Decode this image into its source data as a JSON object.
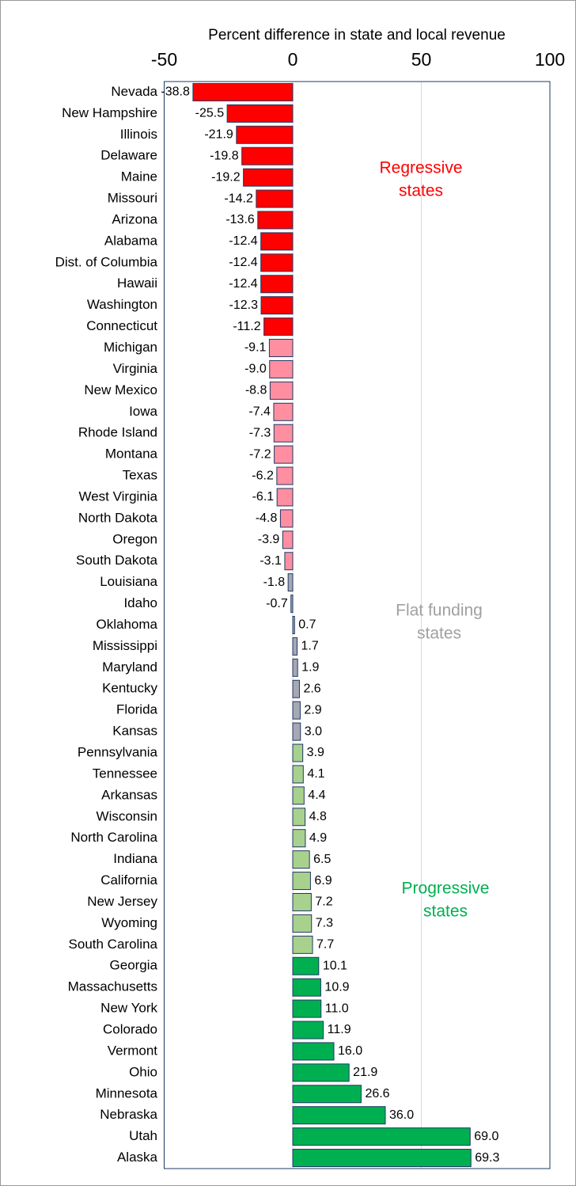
{
  "chart_data": {
    "type": "hbar",
    "title": "Percent difference in state and local revenue",
    "categories": [
      "Nevada",
      "New Hampshire",
      "Illinois",
      "Delaware",
      "Maine",
      "Missouri",
      "Arizona",
      "Alabama",
      "Dist. of Columbia",
      "Hawaii",
      "Washington",
      "Connecticut",
      "Michigan",
      "Virginia",
      "New Mexico",
      "Iowa",
      "Rhode Island",
      "Montana",
      "Texas",
      "West Virginia",
      "North Dakota",
      "Oregon",
      "South Dakota",
      "Louisiana",
      "Idaho",
      "Oklahoma",
      "Mississippi",
      "Maryland",
      "Kentucky",
      "Florida",
      "Kansas",
      "Pennsylvania",
      "Tennessee",
      "Arkansas",
      "Wisconsin",
      "North Carolina",
      "Indiana",
      "California",
      "New Jersey",
      "Wyoming",
      "South Carolina",
      "Georgia",
      "Massachusetts",
      "New York",
      "Colorado",
      "Vermont",
      "Ohio",
      "Minnesota",
      "Nebraska",
      "Utah",
      "Alaska"
    ],
    "values": [
      -38.8,
      -25.5,
      -21.9,
      -19.8,
      -19.2,
      -14.2,
      -13.6,
      -12.4,
      -12.4,
      -12.4,
      -12.3,
      -11.2,
      -9.1,
      -9.0,
      -8.8,
      -7.4,
      -7.3,
      -7.2,
      -6.2,
      -6.1,
      -4.8,
      -3.9,
      -3.1,
      -1.8,
      -0.7,
      0.7,
      1.7,
      1.9,
      2.6,
      2.9,
      3.0,
      3.9,
      4.1,
      4.4,
      4.8,
      4.9,
      6.5,
      6.9,
      7.2,
      7.3,
      7.7,
      10.1,
      10.9,
      11.0,
      11.9,
      16.0,
      21.9,
      26.6,
      36.0,
      69.0,
      69.3
    ],
    "value_labels": [
      "-38.8",
      "-25.5",
      "-21.9",
      "-19.8",
      "-19.2",
      "-14.2",
      "-13.6",
      "-12.4",
      "-12.4",
      "-12.4",
      "-12.3",
      "-11.2",
      "-9.1",
      "-9.0",
      "-8.8",
      "-7.4",
      "-7.3",
      "-7.2",
      "-6.2",
      "-6.1",
      "-4.8",
      "-3.9",
      "-3.1",
      "-1.8",
      "-0.7",
      "0.7",
      "1.7",
      "1.9",
      "2.6",
      "2.9",
      "3.0",
      "3.9",
      "4.1",
      "4.4",
      "4.8",
      "4.9",
      "6.5",
      "6.9",
      "7.2",
      "7.3",
      "7.7",
      "10.1",
      "10.9",
      "11.0",
      "11.9",
      "16.0",
      "21.9",
      "26.6",
      "36.0",
      "69.0",
      "69.3"
    ],
    "colors": [
      "#ff0000",
      "#ff0000",
      "#ff0000",
      "#ff0000",
      "#ff0000",
      "#ff0000",
      "#ff0000",
      "#ff0000",
      "#ff0000",
      "#ff0000",
      "#ff0000",
      "#ff0000",
      "#ff8fa0",
      "#ff8fa0",
      "#ff8fa0",
      "#ff8fa0",
      "#ff8fa0",
      "#ff8fa0",
      "#ff8fa0",
      "#ff8fa0",
      "#ff8fa0",
      "#ff8fa0",
      "#ff8fa0",
      "#a6a8b4",
      "#a6a8b4",
      "#a6a8b4",
      "#a6a8b4",
      "#a6a8b4",
      "#a6a8b4",
      "#a6a8b4",
      "#a6a8b4",
      "#a9d18e",
      "#a9d18e",
      "#a9d18e",
      "#a9d18e",
      "#a9d18e",
      "#a9d18e",
      "#a9d18e",
      "#a9d18e",
      "#a9d18e",
      "#a9d18e",
      "#00b050",
      "#00b050",
      "#00b050",
      "#00b050",
      "#00b050",
      "#00b050",
      "#00b050",
      "#00b050",
      "#00b050",
      "#00b050"
    ],
    "xlim": [
      -50,
      100
    ],
    "xticks": [
      -50,
      0,
      50,
      100
    ],
    "grid": true,
    "annotations": [
      {
        "lines": [
          "Regressive",
          "states"
        ],
        "color": "#ff0000"
      },
      {
        "lines": [
          "Flat funding",
          "states"
        ],
        "color": "#a0a0a0"
      },
      {
        "lines": [
          "Progressive",
          "states"
        ],
        "color": "#00b050"
      }
    ]
  }
}
